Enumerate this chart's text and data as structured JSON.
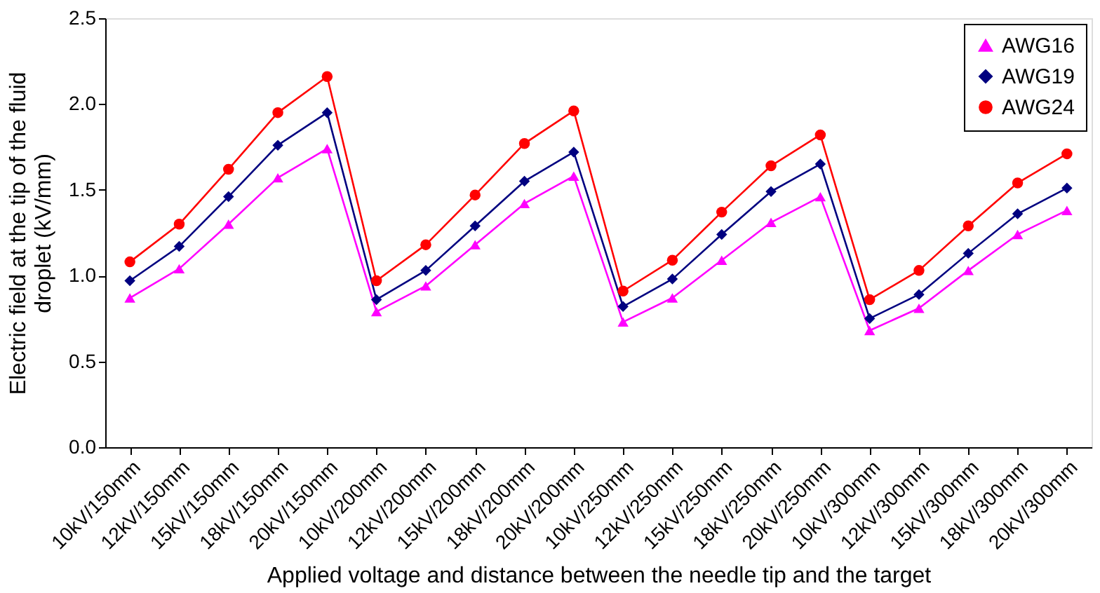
{
  "chart_data": {
    "type": "line",
    "xlabel": "Applied voltage and distance between the needle tip and the target",
    "ylabel": "Electric field at the tip of the fluid droplet (kV/mm)",
    "categories": [
      "10kV/150mm",
      "12kV/150mm",
      "15kV/150mm",
      "18kV/150mm",
      "20kV/150mm",
      "10kV/200mm",
      "12kV/200mm",
      "15kV/200mm",
      "18kV/200mm",
      "20kV/200mm",
      "10kV/250mm",
      "12kV/250mm",
      "15kV/250mm",
      "18kV/250mm",
      "20kV/250mm",
      "10kV/300mm",
      "12kV/300mm",
      "15kV/300mm",
      "18kV/300mm",
      "20kV/300mm"
    ],
    "series": [
      {
        "name": "AWG16",
        "color": "#ff00ff",
        "marker": "triangle",
        "values": [
          0.87,
          1.04,
          1.3,
          1.57,
          1.74,
          0.79,
          0.94,
          1.18,
          1.42,
          1.58,
          0.73,
          0.87,
          1.09,
          1.31,
          1.46,
          0.68,
          0.81,
          1.03,
          1.24,
          1.38
        ]
      },
      {
        "name": "AWG19",
        "color": "#000080",
        "marker": "diamond",
        "values": [
          0.97,
          1.17,
          1.46,
          1.76,
          1.95,
          0.86,
          1.03,
          1.29,
          1.55,
          1.72,
          0.82,
          0.98,
          1.24,
          1.49,
          1.65,
          0.75,
          0.89,
          1.13,
          1.36,
          1.51
        ]
      },
      {
        "name": "AWG24",
        "color": "#ff0000",
        "marker": "circle",
        "values": [
          1.08,
          1.3,
          1.62,
          1.95,
          2.16,
          0.97,
          1.18,
          1.47,
          1.77,
          1.96,
          0.91,
          1.09,
          1.37,
          1.64,
          1.82,
          0.86,
          1.03,
          1.29,
          1.54,
          1.71
        ]
      }
    ],
    "ylim": [
      0,
      2.5
    ],
    "yticks": [
      {
        "value": 0,
        "label": "0.0"
      },
      {
        "value": 0.5,
        "label": "0.5"
      },
      {
        "value": 1,
        "label": "1.0"
      },
      {
        "value": 1.5,
        "label": "1.5"
      },
      {
        "value": 2,
        "label": "2.0"
      },
      {
        "value": 2.5,
        "label": "2.5"
      }
    ],
    "grid": false,
    "legend": "top right",
    "line_style": "solid"
  }
}
